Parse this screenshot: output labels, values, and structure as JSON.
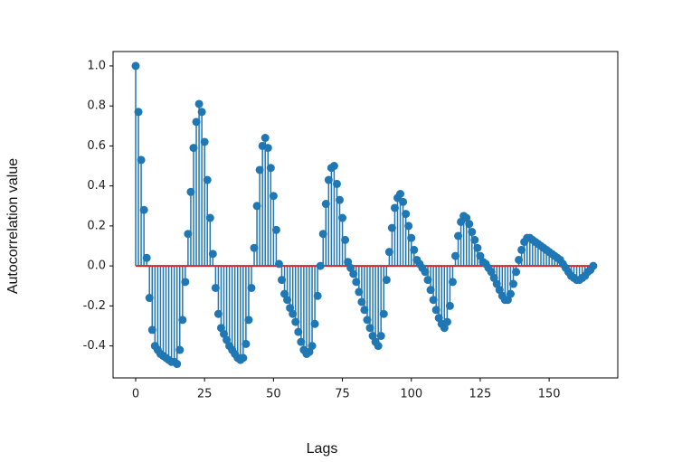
{
  "chart_data": {
    "type": "stem",
    "x_label": "Lags",
    "y_label": "Autocorrelation value",
    "x": [
      0,
      1,
      2,
      3,
      4,
      5,
      6,
      7,
      8,
      9,
      10,
      11,
      12,
      13,
      14,
      15,
      16,
      17,
      18,
      19,
      20,
      21,
      22,
      23,
      24,
      25,
      26,
      27,
      28,
      29,
      30,
      31,
      32,
      33,
      34,
      35,
      36,
      37,
      38,
      39,
      40,
      41,
      42,
      43,
      44,
      45,
      46,
      47,
      48,
      49,
      50,
      51,
      52,
      53,
      54,
      55,
      56,
      57,
      58,
      59,
      60,
      61,
      62,
      63,
      64,
      65,
      66,
      67,
      68,
      69,
      70,
      71,
      72,
      73,
      74,
      75,
      76,
      77,
      78,
      79,
      80,
      81,
      82,
      83,
      84,
      85,
      86,
      87,
      88,
      89,
      90,
      91,
      92,
      93,
      94,
      95,
      96,
      97,
      98,
      99,
      100,
      101,
      102,
      103,
      104,
      105,
      106,
      107,
      108,
      109,
      110,
      111,
      112,
      113,
      114,
      115,
      116,
      117,
      118,
      119,
      120,
      121,
      122,
      123,
      124,
      125,
      126,
      127,
      128,
      129,
      130,
      131,
      132,
      133,
      134,
      135,
      136,
      137,
      138,
      139,
      140,
      141,
      142,
      143,
      144,
      145,
      146,
      147,
      148,
      149,
      150,
      151,
      152,
      153,
      154,
      155,
      156,
      157,
      158,
      159,
      160,
      161,
      162,
      163,
      164,
      165,
      166
    ],
    "values": [
      1.0,
      0.77,
      0.53,
      0.28,
      0.04,
      -0.16,
      -0.32,
      -0.4,
      -0.42,
      -0.44,
      -0.45,
      -0.46,
      -0.47,
      -0.48,
      -0.48,
      -0.49,
      -0.42,
      -0.27,
      -0.08,
      0.16,
      0.37,
      0.59,
      0.72,
      0.81,
      0.77,
      0.62,
      0.43,
      0.24,
      0.06,
      -0.11,
      -0.24,
      -0.31,
      -0.34,
      -0.37,
      -0.4,
      -0.42,
      -0.44,
      -0.46,
      -0.47,
      -0.46,
      -0.39,
      -0.27,
      -0.11,
      0.09,
      0.3,
      0.48,
      0.6,
      0.64,
      0.59,
      0.49,
      0.35,
      0.18,
      0.01,
      -0.07,
      -0.14,
      -0.17,
      -0.21,
      -0.24,
      -0.28,
      -0.33,
      -0.38,
      -0.42,
      -0.44,
      -0.43,
      -0.4,
      -0.29,
      -0.15,
      0.0,
      0.16,
      0.31,
      0.43,
      0.49,
      0.5,
      0.41,
      0.33,
      0.24,
      0.13,
      0.02,
      -0.01,
      -0.04,
      -0.08,
      -0.13,
      -0.18,
      -0.22,
      -0.27,
      -0.31,
      -0.35,
      -0.38,
      -0.4,
      -0.35,
      -0.24,
      -0.07,
      0.07,
      0.19,
      0.29,
      0.34,
      0.36,
      0.32,
      0.26,
      0.2,
      0.14,
      0.08,
      0.03,
      0.01,
      -0.01,
      -0.03,
      -0.07,
      -0.12,
      -0.17,
      -0.22,
      -0.26,
      -0.29,
      -0.31,
      -0.28,
      -0.2,
      -0.08,
      0.05,
      0.15,
      0.22,
      0.25,
      0.24,
      0.21,
      0.17,
      0.13,
      0.09,
      0.05,
      0.02,
      0.01,
      -0.01,
      -0.03,
      -0.06,
      -0.09,
      -0.12,
      -0.15,
      -0.17,
      -0.17,
      -0.14,
      -0.09,
      -0.03,
      0.03,
      0.08,
      0.12,
      0.14,
      0.14,
      0.13,
      0.12,
      0.11,
      0.1,
      0.09,
      0.08,
      0.07,
      0.06,
      0.05,
      0.04,
      0.03,
      0.01,
      -0.01,
      -0.03,
      -0.05,
      -0.06,
      -0.07,
      -0.07,
      -0.06,
      -0.05,
      -0.03,
      -0.02,
      0.0
    ],
    "color": "#1f77b4",
    "baseline_color": "#d62728",
    "xlim": [
      -8.2,
      174.9
    ],
    "ylim": [
      -0.56,
      1.072
    ],
    "xticks": [
      0,
      25,
      50,
      75,
      100,
      125,
      150
    ],
    "yticks": [
      -0.4,
      -0.2,
      {
        "value": 0.0,
        "label": "0.0"
      },
      0.2,
      0.4,
      0.6,
      0.8,
      {
        "value": 1.0,
        "label": "1.0"
      }
    ],
    "grid": false
  }
}
